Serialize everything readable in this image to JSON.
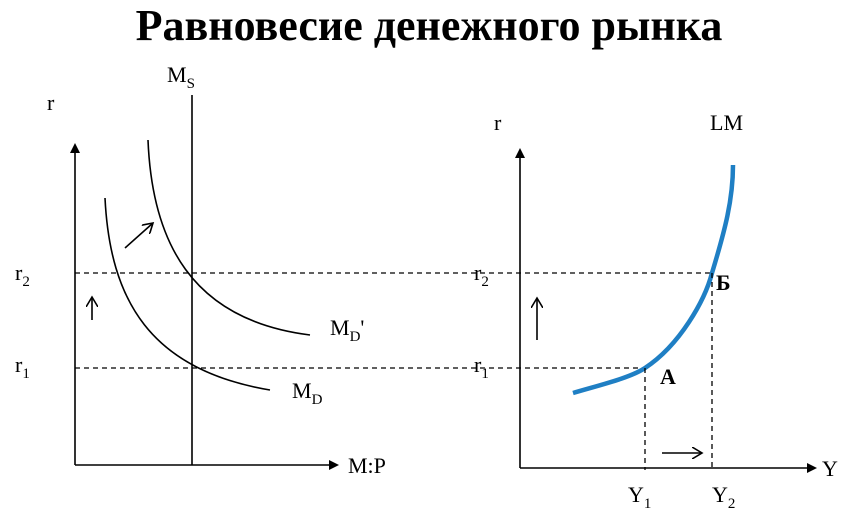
{
  "title": "Равновесие денежного рынка",
  "left_graph": {
    "y_axis_label": "r",
    "x_axis_label": "M:P",
    "supply_label": {
      "main": "M",
      "sub": "S"
    },
    "r2_label": {
      "main": "r",
      "sub": "2"
    },
    "r1_label": {
      "main": "r",
      "sub": "1"
    },
    "demand_new_label": {
      "main": "M",
      "sub": "D",
      "suffix": "'"
    },
    "demand_label": {
      "main": "M",
      "sub": "D"
    }
  },
  "right_graph": {
    "y_axis_label": "r",
    "x_axis_label": "Y",
    "curve_label": "LM",
    "point_b": "Б",
    "point_a": "A",
    "r2_label": {
      "main": "r",
      "sub": "2"
    },
    "r1_label": {
      "main": "r",
      "sub": "1"
    },
    "y1_label": {
      "main": "Y",
      "sub": "1"
    },
    "y2_label": {
      "main": "Y",
      "sub": "2"
    }
  }
}
